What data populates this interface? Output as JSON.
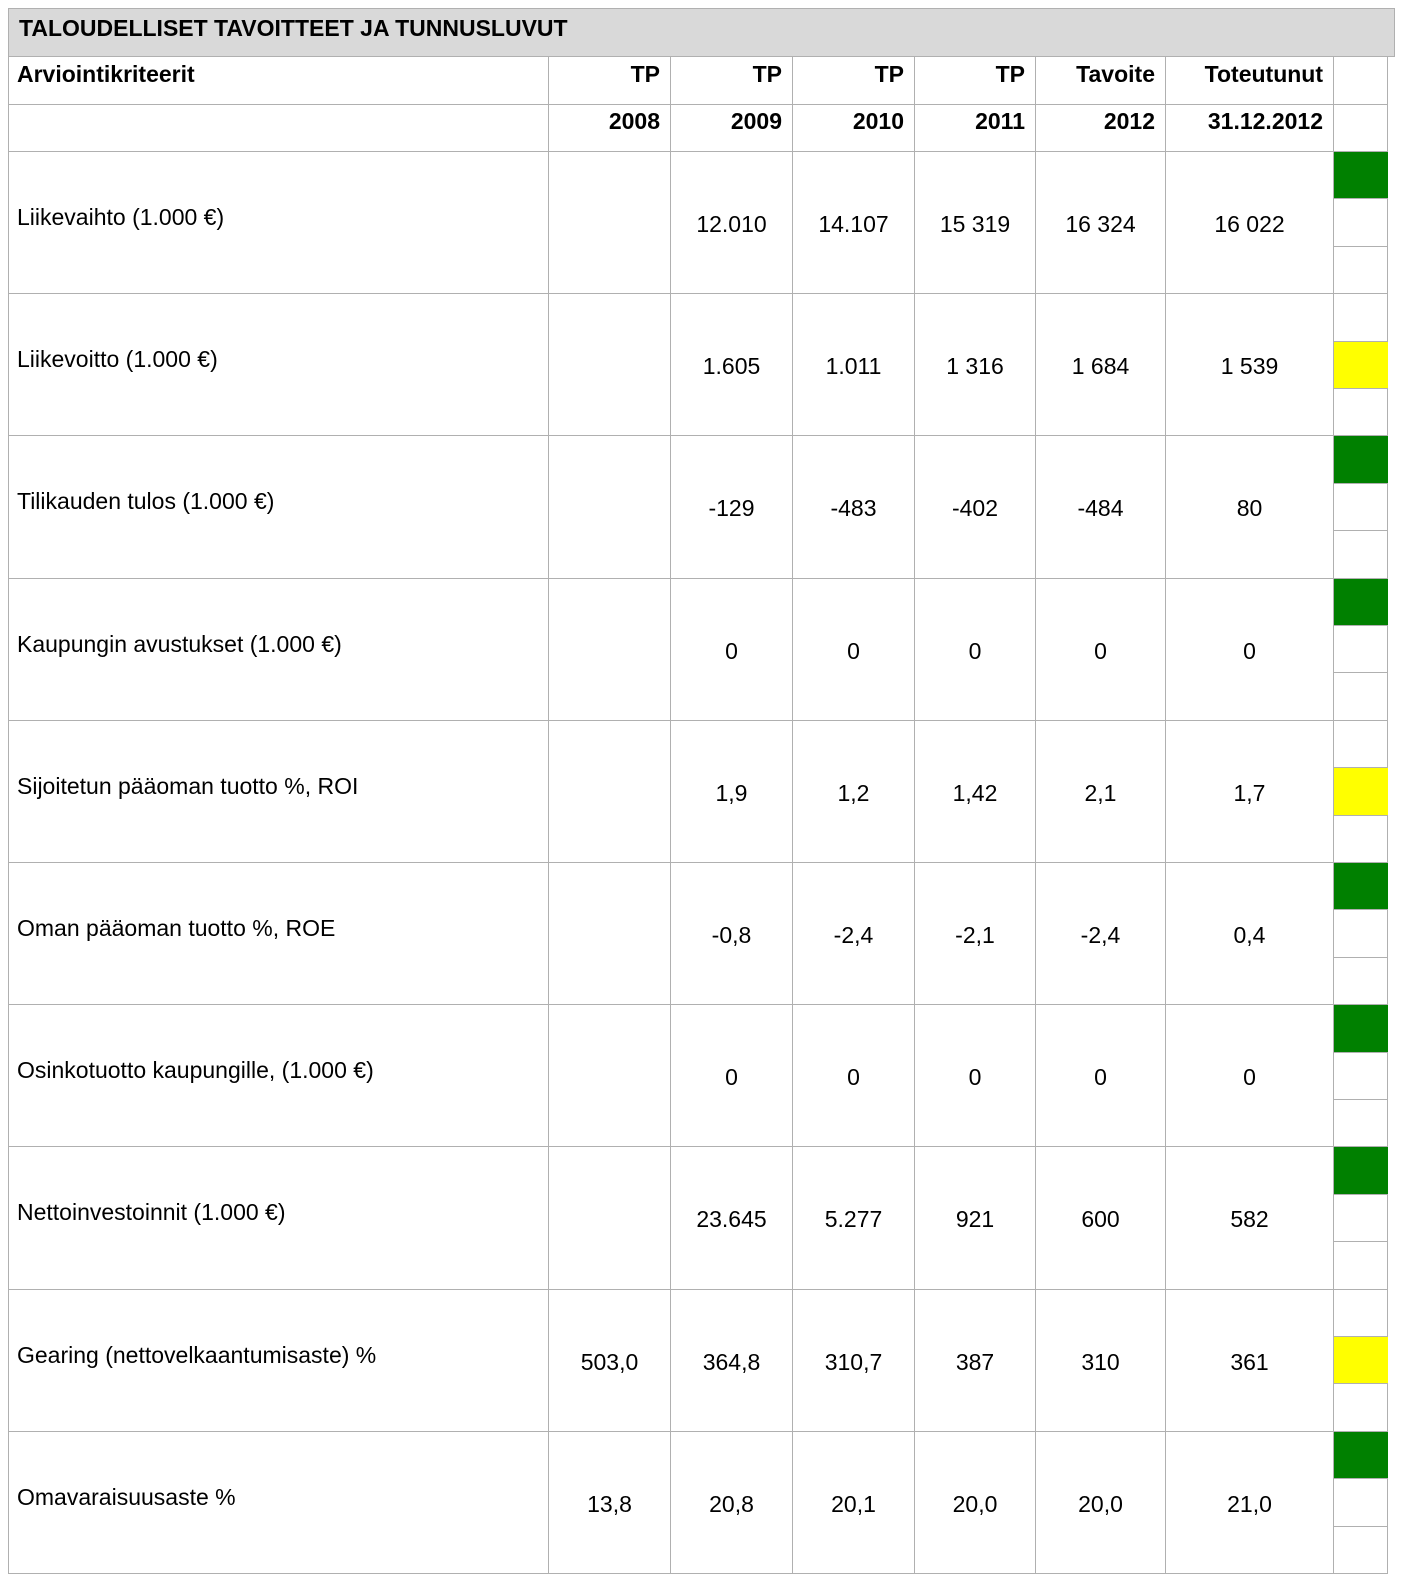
{
  "title": "TALOUDELLISET TAVOITTEET JA TUNNUSLUVUT",
  "table": {
    "header": [
      [
        "Arviointikriteerit",
        "TP",
        "TP",
        "TP",
        "TP",
        "Tavoite",
        "Toteutunut"
      ],
      [
        null,
        "2008",
        "2009",
        "2010",
        "2011",
        "2012",
        "31.12.2012"
      ]
    ],
    "rows": [
      {
        "cells": [
          "Liikevaihto (1.000 €)",
          null,
          "12.010",
          "14.107",
          "15 319",
          "16 324",
          "16 022"
        ],
        "status": "green"
      },
      {
        "cells": [
          "Liikevoitto (1.000 €)",
          null,
          "1.605",
          "1.011",
          "1 316",
          "1 684",
          "1 539"
        ],
        "status": "yellow"
      },
      {
        "cells": [
          "Tilikauden tulos (1.000 €)",
          null,
          "-129",
          "-483",
          "-402",
          "-484",
          "80"
        ],
        "status": "green"
      },
      {
        "cells": [
          "Kaupungin avustukset (1.000 €)",
          null,
          "0",
          "0",
          "0",
          "0",
          "0"
        ],
        "status": "green"
      },
      {
        "cells": [
          "Sijoitetun pääoman tuotto %, ROI",
          null,
          "1,9",
          "1,2",
          "1,42",
          "2,1",
          "1,7"
        ],
        "status": "yellow"
      },
      {
        "cells": [
          "Oman pääoman tuotto %, ROE",
          null,
          "-0,8",
          "-2,4",
          "-2,1",
          "-2,4",
          "0,4"
        ],
        "status": "green"
      },
      {
        "cells": [
          "Osinkotuotto kaupungille, (1.000 €)",
          null,
          "0",
          "0",
          "0",
          "0",
          "0"
        ],
        "status": "green"
      },
      {
        "cells": [
          "Nettoinvestoinnit (1.000 €)",
          null,
          "23.645",
          "5.277",
          "921",
          "600",
          "582"
        ],
        "status": "green"
      },
      {
        "cells": [
          "Gearing (nettovelkaantumisaste) %",
          "503,0",
          "364,8",
          "310,7",
          "387",
          "310",
          "361"
        ],
        "status": "yellow"
      },
      {
        "cells": [
          "Omavaraisuusaste %",
          "13,8",
          "20,8",
          "20,1",
          "20,0",
          "20,0",
          "21,0"
        ],
        "status": "green"
      }
    ]
  }
}
